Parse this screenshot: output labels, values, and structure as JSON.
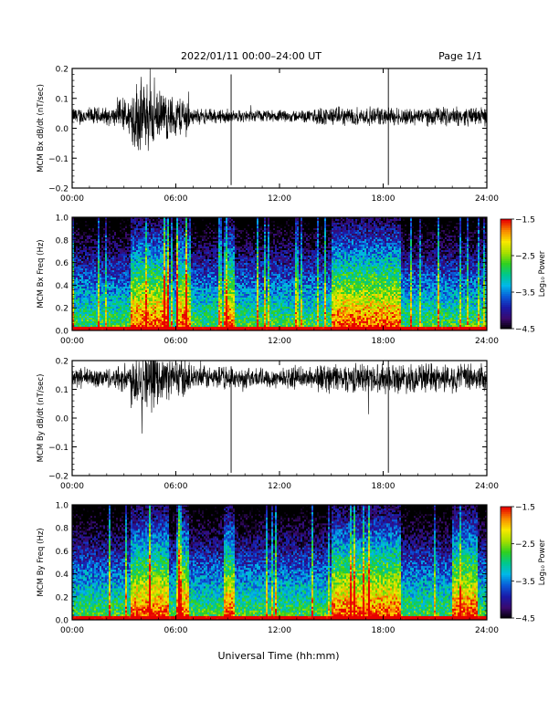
{
  "header": {
    "title": "2022/01/11  00:00–24:00 UT",
    "page": "Page 1/1"
  },
  "footer": {
    "xlabel": "Universal Time (hh:mm)"
  },
  "colors": {
    "trace": "#000000",
    "background": "#ffffff",
    "spectrogram_scale": [
      "#000000",
      "#3a0a6e",
      "#1a1aa8",
      "#0a5ad8",
      "#00b8e8",
      "#00c88c",
      "#30d020",
      "#a8e000",
      "#f8e800",
      "#f88800",
      "#e80000"
    ]
  },
  "chart_data": [
    {
      "type": "line",
      "ylabel": "MCM Bx dB/dt (nT/sec)",
      "xlim": [
        0,
        24
      ],
      "ylim": [
        -0.2,
        0.2
      ],
      "xticks": [
        "00:00",
        "06:00",
        "12:00",
        "18:00",
        "24:00"
      ],
      "yticks": [
        "0.2",
        "0.1",
        "0.0",
        "−0.1",
        "−0.2"
      ],
      "baseline": 0.04,
      "noise_segments": [
        {
          "x": [
            0,
            2.6
          ],
          "amp": 0.03
        },
        {
          "x": [
            2.6,
            3.4
          ],
          "amp": 0.06
        },
        {
          "x": [
            3.4,
            4.8
          ],
          "amp": 0.12
        },
        {
          "x": [
            4.8,
            5.6
          ],
          "amp": 0.08
        },
        {
          "x": [
            5.6,
            6.8
          ],
          "amp": 0.07
        },
        {
          "x": [
            6.8,
            9.0
          ],
          "amp": 0.025
        },
        {
          "x": [
            9.0,
            14.0
          ],
          "amp": 0.02
        },
        {
          "x": [
            14.0,
            18.0
          ],
          "amp": 0.03
        },
        {
          "x": [
            18.0,
            24.0
          ],
          "amp": 0.03
        }
      ],
      "spikes": [
        {
          "x": 9.2,
          "y": [
            -0.19,
            0.18
          ]
        },
        {
          "x": 18.3,
          "y": [
            -0.19,
            0.2
          ]
        }
      ]
    },
    {
      "type": "heatmap",
      "ylabel": "MCM Bx Freq (Hz)",
      "xlim": [
        0,
        24
      ],
      "ylim": [
        0,
        1.0
      ],
      "xticks": [
        "00:00",
        "06:00",
        "12:00",
        "18:00",
        "24:00"
      ],
      "yticks": [
        "1.0",
        "0.8",
        "0.6",
        "0.4",
        "0.2",
        "0.0"
      ],
      "colorbar": {
        "label": "Log₁₀ Power",
        "range": [
          -4.5,
          -1.5
        ],
        "ticks": [
          "−1.5",
          "−2.5",
          "−3.5",
          "−4.5"
        ]
      },
      "active_intervals": [
        [
          3.4,
          5.6
        ],
        [
          6.0,
          6.8
        ],
        [
          8.8,
          9.4
        ],
        [
          15.0,
          19.0
        ]
      ]
    },
    {
      "type": "line",
      "ylabel": "MCM By dB/dt (nT/sec)",
      "xlim": [
        0,
        24
      ],
      "ylim": [
        -0.2,
        0.2
      ],
      "xticks": [
        "00:00",
        "06:00",
        "12:00",
        "18:00",
        "24:00"
      ],
      "yticks": [
        "0.2",
        "0.1",
        "0.0",
        "−0.1",
        "−0.2"
      ],
      "baseline": 0.14,
      "noise_segments": [
        {
          "x": [
            0,
            2.6
          ],
          "amp": 0.035
        },
        {
          "x": [
            2.6,
            3.4
          ],
          "amp": 0.05
        },
        {
          "x": [
            3.4,
            4.8
          ],
          "amp": 0.1
        },
        {
          "x": [
            4.8,
            6.8
          ],
          "amp": 0.07
        },
        {
          "x": [
            6.8,
            9.0
          ],
          "amp": 0.04
        },
        {
          "x": [
            9.0,
            14.0
          ],
          "amp": 0.035
        },
        {
          "x": [
            14.0,
            24.0
          ],
          "amp": 0.05
        }
      ],
      "spikes": [
        {
          "x": 9.2,
          "y": [
            -0.19,
            0.18
          ]
        },
        {
          "x": 18.3,
          "y": [
            -0.19,
            0.2
          ]
        }
      ]
    },
    {
      "type": "heatmap",
      "ylabel": "MCM By Freq (Hz)",
      "xlim": [
        0,
        24
      ],
      "ylim": [
        0,
        1.0
      ],
      "xticks": [
        "00:00",
        "06:00",
        "12:00",
        "18:00",
        "24:00"
      ],
      "yticks": [
        "1.0",
        "0.8",
        "0.6",
        "0.4",
        "0.2",
        "0.0"
      ],
      "colorbar": {
        "label": "Log₁₀ Power",
        "range": [
          -4.5,
          -1.5
        ],
        "ticks": [
          "−1.5",
          "−2.5",
          "−3.5",
          "−4.5"
        ]
      },
      "active_intervals": [
        [
          3.4,
          5.6
        ],
        [
          6.0,
          6.8
        ],
        [
          8.8,
          9.4
        ],
        [
          15.0,
          19.0
        ],
        [
          22.0,
          23.5
        ]
      ]
    }
  ]
}
